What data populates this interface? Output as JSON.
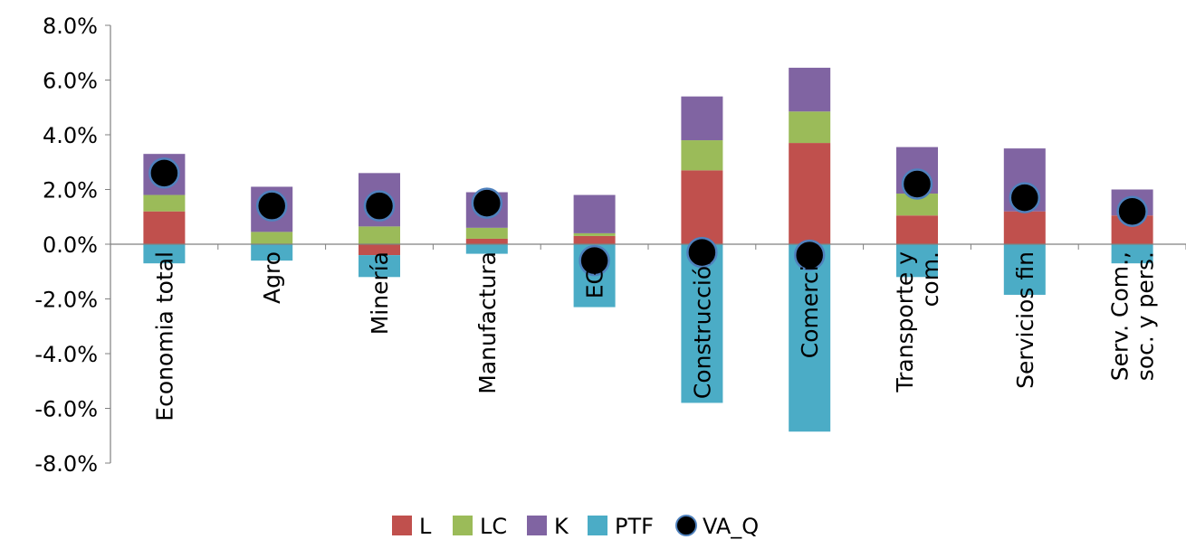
{
  "chart_data": {
    "type": "bar",
    "stacked": true,
    "categories": [
      [
        "Economia total"
      ],
      [
        "Agro"
      ],
      [
        "Minería"
      ],
      [
        "Manufactura"
      ],
      [
        "EGA"
      ],
      [
        "Construcción"
      ],
      [
        "Comercio"
      ],
      [
        "Transporte y",
        "com."
      ],
      [
        "Servicios fin"
      ],
      [
        "Serv. Com.,",
        "soc. y pers."
      ]
    ],
    "series": [
      {
        "name": "L",
        "color": "#C0504D",
        "values": [
          1.2,
          0.0,
          -0.4,
          0.2,
          0.3,
          2.7,
          3.7,
          1.05,
          1.2,
          1.05
        ]
      },
      {
        "name": "LC",
        "color": "#9BBB59",
        "values": [
          0.6,
          0.45,
          0.65,
          0.4,
          0.1,
          1.1,
          1.15,
          0.8,
          0.0,
          0.0
        ]
      },
      {
        "name": "K",
        "color": "#8064A2",
        "values": [
          1.5,
          1.65,
          1.95,
          1.3,
          1.4,
          1.6,
          1.6,
          1.7,
          2.3,
          0.95
        ]
      },
      {
        "name": "PTF",
        "color": "#4BACC6",
        "values": [
          -0.7,
          -0.6,
          -0.8,
          -0.35,
          -2.3,
          -5.8,
          -6.85,
          -1.2,
          -1.85,
          -0.7
        ]
      }
    ],
    "markers": {
      "name": "VA_Q",
      "color": "#000000",
      "edge_color": "#4F81BD",
      "values": [
        2.6,
        1.4,
        1.4,
        1.5,
        -0.6,
        -0.3,
        -0.4,
        2.2,
        1.7,
        1.2
      ]
    },
    "yticks": [
      "8.0%",
      "6.0%",
      "4.0%",
      "2.0%",
      "0.0%",
      "-2.0%",
      "-4.0%",
      "-6.0%",
      "-8.0%"
    ],
    "ylim": [
      -8,
      8
    ],
    "legend_position": "bottom",
    "grid": false
  }
}
